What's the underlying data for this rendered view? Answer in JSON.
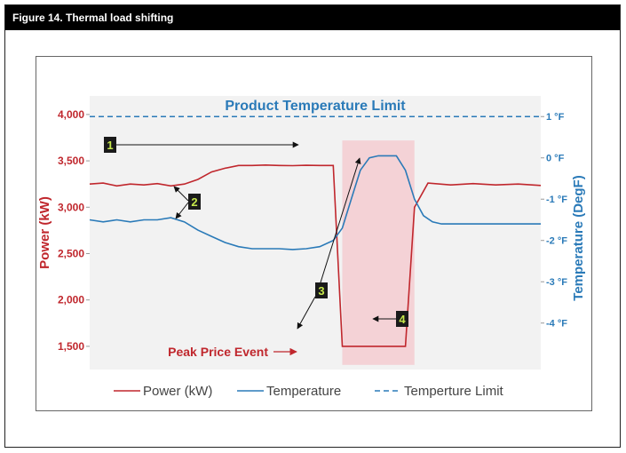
{
  "figure": {
    "title": "Figure 14. Thermal load shifting"
  },
  "chart_data": {
    "type": "line",
    "title": "",
    "xlabel": "",
    "ylabel": "Power (kW)",
    "ylabel_right": "Temperature (DegF)",
    "ylim": [
      1250,
      4200
    ],
    "ylim_right": [
      -5.125,
      1.5
    ],
    "yticks": [
      {
        "value": 1500,
        "label": "1,500"
      },
      {
        "value": 2000,
        "label": "2,000"
      },
      {
        "value": 2500,
        "label": "2,500"
      },
      {
        "value": 3000,
        "label": "3,000"
      },
      {
        "value": 3500,
        "label": "3,500"
      },
      {
        "value": 4000,
        "label": "4,000"
      }
    ],
    "yticks_right": [
      {
        "value": 1,
        "label": "1 °F"
      },
      {
        "value": 0,
        "label": "0 °F"
      },
      {
        "value": -1,
        "label": "-1 °F"
      },
      {
        "value": -2,
        "label": "-2 °F"
      },
      {
        "value": -3,
        "label": "-3 °F"
      },
      {
        "value": -4,
        "label": "-4 °F"
      }
    ],
    "grid": false,
    "legend_position": "bottom",
    "xlim": [
      0,
      100
    ],
    "series": [
      {
        "name": "Power (kW)",
        "axis": "left",
        "color": "#c0272d",
        "dash": "solid",
        "x": [
          0,
          3,
          6,
          9,
          12,
          15,
          18,
          21,
          24,
          27,
          30,
          33,
          36,
          39,
          42,
          45,
          48,
          51,
          54,
          56,
          59,
          60,
          62,
          65,
          68,
          70,
          72,
          75,
          80,
          85,
          90,
          95,
          100
        ],
        "y": [
          3250,
          3260,
          3230,
          3250,
          3240,
          3255,
          3230,
          3250,
          3300,
          3380,
          3420,
          3450,
          3450,
          3455,
          3450,
          3448,
          3452,
          3450,
          3450,
          1500,
          1500,
          1500,
          1500,
          1500,
          1500,
          1500,
          3000,
          3260,
          3240,
          3255,
          3240,
          3250,
          3235
        ]
      },
      {
        "name": "Temperature",
        "axis": "right",
        "color": "#2a7ab8",
        "dash": "solid",
        "x": [
          0,
          3,
          6,
          9,
          12,
          15,
          18,
          21,
          24,
          27,
          30,
          33,
          36,
          39,
          42,
          45,
          48,
          51,
          54,
          56,
          58,
          60,
          62,
          64,
          66,
          68,
          70,
          72,
          74,
          76,
          78,
          80,
          85,
          90,
          95,
          100
        ],
        "y": [
          -1.5,
          -1.55,
          -1.5,
          -1.55,
          -1.5,
          -1.5,
          -1.45,
          -1.55,
          -1.75,
          -1.9,
          -2.05,
          -2.15,
          -2.2,
          -2.2,
          -2.2,
          -2.22,
          -2.2,
          -2.15,
          -2.0,
          -1.7,
          -1.0,
          -0.3,
          0.0,
          0.05,
          0.05,
          0.05,
          -0.3,
          -1.0,
          -1.4,
          -1.55,
          -1.6,
          -1.6,
          -1.6,
          -1.6,
          -1.6,
          -1.6
        ]
      },
      {
        "name": "Temperture Limit",
        "axis": "right",
        "color": "#2a7ab8",
        "dash": "dashed",
        "x": [
          0,
          100
        ],
        "y": [
          1,
          1
        ]
      }
    ],
    "annotations": {
      "limit_label": "Product Temperature Limit",
      "event_label": "Peak Price Event",
      "event_span": [
        56,
        72
      ],
      "markers": [
        "1",
        "2",
        "3",
        "4"
      ]
    }
  }
}
